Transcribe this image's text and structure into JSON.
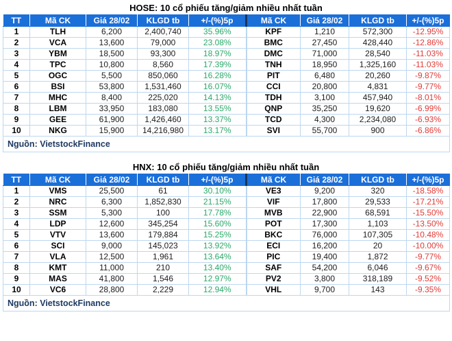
{
  "colors": {
    "header_blue": "#1b6fd9",
    "grid_line": "#bdd7ee",
    "positive_green": "#2ba96a",
    "negative_red": "#e03a36",
    "header_split_navy": "#17365d",
    "source_text": "#1f3a63"
  },
  "columns": [
    "TT",
    "Mã CK",
    "Giá 28/02",
    "KLGD tb",
    "+/-(%)5p",
    "Mã CK",
    "Giá 28/02",
    "KLGD tb",
    "+/-(%)5p"
  ],
  "chart_data": [
    {
      "type": "table",
      "title": "HOSE: 10 cổ phiếu tăng/giảm nhiều nhất tuần",
      "source": "Nguồn: VietstockFinance",
      "rows": [
        [
          "1",
          "TLH",
          "6,200",
          "2,400,740",
          "35.96%",
          "KPF",
          "1,210",
          "572,300",
          "-12.95%"
        ],
        [
          "2",
          "VCA",
          "13,600",
          "79,000",
          "23.08%",
          "BMC",
          "27,450",
          "428,440",
          "-12.86%"
        ],
        [
          "3",
          "YBM",
          "18,500",
          "93,300",
          "18.97%",
          "DMC",
          "71,000",
          "28,540",
          "-11.03%"
        ],
        [
          "4",
          "TPC",
          "10,800",
          "8,560",
          "17.39%",
          "TNH",
          "18,950",
          "1,325,160",
          "-11.03%"
        ],
        [
          "5",
          "OGC",
          "5,500",
          "850,060",
          "16.28%",
          "PIT",
          "6,480",
          "20,260",
          "-9.87%"
        ],
        [
          "6",
          "BSI",
          "53,800",
          "1,531,460",
          "16.07%",
          "CCI",
          "20,800",
          "4,831",
          "-9.77%"
        ],
        [
          "7",
          "MHC",
          "8,400",
          "225,020",
          "14.13%",
          "TDH",
          "3,100",
          "457,940",
          "-8.01%"
        ],
        [
          "8",
          "LBM",
          "33,950",
          "183,080",
          "13.55%",
          "QNP",
          "35,250",
          "19,620",
          "-6.99%"
        ],
        [
          "9",
          "GEE",
          "61,900",
          "1,426,460",
          "13.37%",
          "TCD",
          "4,300",
          "2,234,080",
          "-6.93%"
        ],
        [
          "10",
          "NKG",
          "15,900",
          "14,216,980",
          "13.17%",
          "SVI",
          "55,700",
          "900",
          "-6.86%"
        ]
      ]
    },
    {
      "type": "table",
      "title": "HNX: 10 cổ phiếu tăng/giảm nhiều nhất tuần",
      "source": "Nguồn: VietstockFinance",
      "rows": [
        [
          "1",
          "VMS",
          "25,500",
          "61",
          "30.10%",
          "VE3",
          "9,200",
          "320",
          "-18.58%"
        ],
        [
          "2",
          "NRC",
          "6,300",
          "1,852,830",
          "21.15%",
          "VIF",
          "17,800",
          "29,533",
          "-17.21%"
        ],
        [
          "3",
          "SSM",
          "5,300",
          "100",
          "17.78%",
          "MVB",
          "22,900",
          "68,591",
          "-15.50%"
        ],
        [
          "4",
          "LDP",
          "12,600",
          "345,254",
          "15.60%",
          "POT",
          "17,300",
          "1,103",
          "-13.50%"
        ],
        [
          "5",
          "VTV",
          "13,600",
          "179,884",
          "15.25%",
          "BKC",
          "76,000",
          "107,305",
          "-10.48%"
        ],
        [
          "6",
          "SCI",
          "9,000",
          "145,023",
          "13.92%",
          "ECI",
          "16,200",
          "20",
          "-10.00%"
        ],
        [
          "7",
          "VLA",
          "12,500",
          "1,961",
          "13.64%",
          "PIC",
          "19,400",
          "1,872",
          "-9.77%"
        ],
        [
          "8",
          "KMT",
          "11,000",
          "210",
          "13.40%",
          "SAF",
          "54,200",
          "6,046",
          "-9.67%"
        ],
        [
          "9",
          "MAS",
          "41,800",
          "1,546",
          "12.97%",
          "PV2",
          "3,800",
          "318,189",
          "-9.52%"
        ],
        [
          "10",
          "VC6",
          "28,800",
          "2,229",
          "12.94%",
          "VHL",
          "9,700",
          "143",
          "-9.35%"
        ]
      ]
    }
  ]
}
